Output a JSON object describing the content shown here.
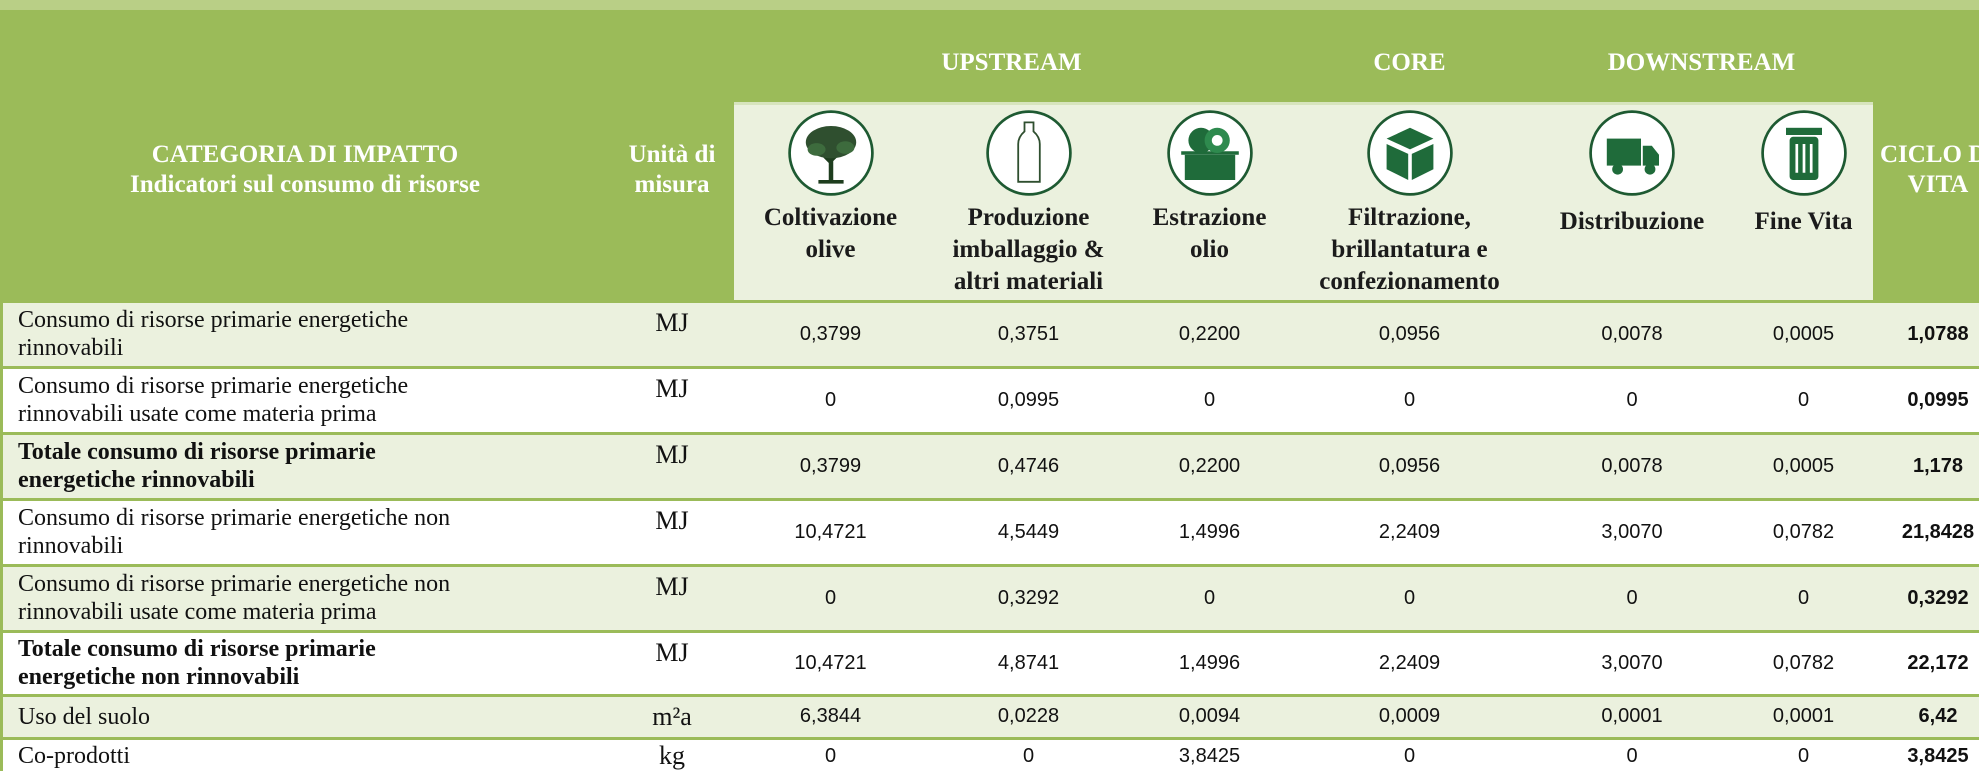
{
  "table": {
    "header": {
      "category": [
        "CATEGORIA DI IMPATTO",
        "Indicatori sul consumo di risorse"
      ],
      "unit": [
        "Unità di",
        "misura"
      ],
      "groups": [
        {
          "label": "UPSTREAM",
          "from": 0,
          "to": 2
        },
        {
          "label": "CORE",
          "from": 3,
          "to": 3
        },
        {
          "label": "DOWNSTREAM",
          "from": 4,
          "to": 5
        }
      ],
      "stages": [
        [
          "Coltivazione",
          "olive"
        ],
        [
          "Produzione",
          "imballaggio &",
          "altri materiali"
        ],
        [
          "Estrazione",
          "olio"
        ],
        [
          "Filtrazione,",
          "brillantatura e",
          "confezionamento"
        ],
        [
          "Distribuzione"
        ],
        [
          "Fine Vita"
        ]
      ],
      "lifecycle": [
        "CICLO DI",
        "VITA"
      ]
    },
    "rows": [
      {
        "label": [
          "Consumo di risorse primarie energetiche",
          "rinnovabili"
        ],
        "bold": false,
        "unit": "MJ",
        "values": [
          "0,3799",
          "0,3751",
          "0,2200",
          "0,0956",
          "0,0078",
          "0,0005"
        ],
        "total": "1,0788"
      },
      {
        "label": [
          "Consumo di risorse primarie energetiche",
          "rinnovabili usate come materia prima"
        ],
        "bold": false,
        "unit": "MJ",
        "values": [
          "0",
          "0,0995",
          "0",
          "0",
          "0",
          "0"
        ],
        "total": "0,0995"
      },
      {
        "label": [
          "Totale consumo di risorse primarie",
          "energetiche rinnovabili"
        ],
        "bold": true,
        "unit": "MJ",
        "values": [
          "0,3799",
          "0,4746",
          "0,2200",
          "0,0956",
          "0,0078",
          "0,0005"
        ],
        "total": "1,178"
      },
      {
        "label": [
          "Consumo di risorse primarie energetiche non",
          "rinnovabili"
        ],
        "bold": false,
        "unit": "MJ",
        "values": [
          "10,4721",
          "4,5449",
          "1,4996",
          "2,2409",
          "3,0070",
          "0,0782"
        ],
        "total": "21,8428"
      },
      {
        "label": [
          "Consumo di risorse primarie energetiche non",
          "rinnovabili usate come materia prima"
        ],
        "bold": false,
        "unit": "MJ",
        "values": [
          "0",
          "0,3292",
          "0",
          "0",
          "0",
          "0"
        ],
        "total": "0,3292"
      },
      {
        "label": [
          "Totale consumo di risorse primarie",
          "energetiche non rinnovabili"
        ],
        "bold": true,
        "unit": "MJ",
        "values": [
          "10,4721",
          "4,8741",
          "1,4996",
          "2,2409",
          "3,0070",
          "0,0782"
        ],
        "total": "22,172"
      },
      {
        "label": [
          "Uso del suolo"
        ],
        "bold": false,
        "unit": "m²a",
        "values": [
          "6,3844",
          "0,0228",
          "0,0094",
          "0,0009",
          "0,0001",
          "0,0001"
        ],
        "total": "6,42"
      },
      {
        "label": [
          "Co-prodotti"
        ],
        "bold": false,
        "unit": "kg",
        "values": [
          "0",
          "0",
          "3,8425",
          "0",
          "0",
          "0"
        ],
        "total": "3,8425"
      }
    ]
  }
}
